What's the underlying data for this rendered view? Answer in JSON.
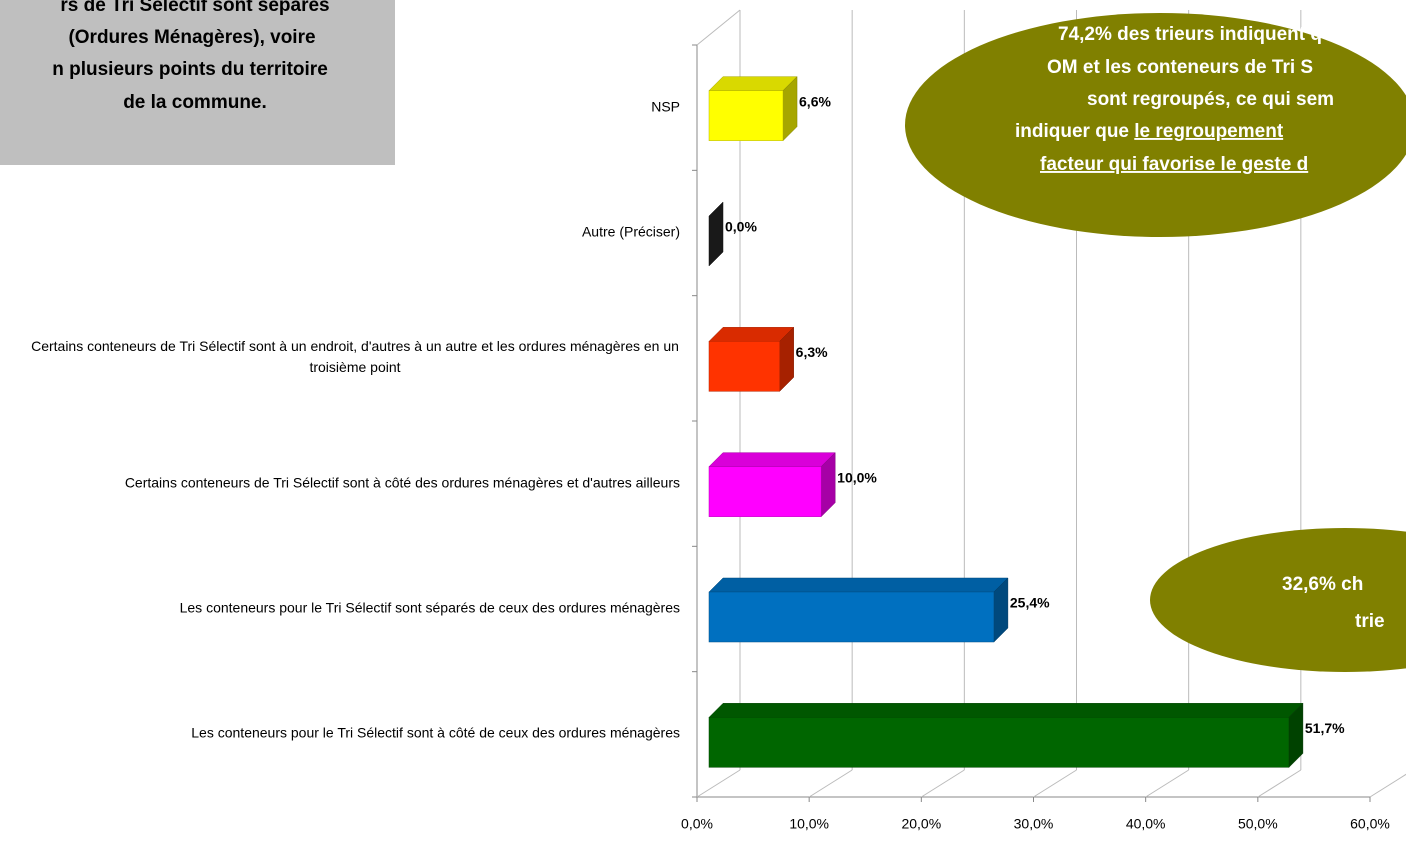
{
  "chart_data": {
    "type": "bar3d_horizontal",
    "categories": [
      "NSP",
      "Autre (Préciser)",
      "Certains conteneurs de Tri Sélectif sont à un endroit, d'autres à un autre et les ordures ménagères en un troisième point",
      "Certains conteneurs de Tri Sélectif sont à côté des ordures ménagères et d'autres ailleurs",
      "Les conteneurs pour le Tri Sélectif sont séparés de ceux des ordures ménagères",
      "Les conteneurs pour le Tri Sélectif sont à côté de ceux des ordures ménagères"
    ],
    "values": [
      6.6,
      0.0,
      6.3,
      10.0,
      25.4,
      51.7
    ],
    "value_labels": [
      "6,6%",
      "0,0%",
      "6,3%",
      "10,0%",
      "25,4%",
      "51,7%"
    ],
    "colors": [
      "#ffff00",
      "#262626",
      "#ff3300",
      "#ff00ff",
      "#0070c0",
      "#006600"
    ],
    "xlim": [
      0,
      60
    ],
    "xticks": [
      {
        "value": 0,
        "label": "0,0%"
      },
      {
        "value": 10,
        "label": "10,0%"
      },
      {
        "value": 20,
        "label": "20,0%"
      },
      {
        "value": 30,
        "label": "30,0%"
      },
      {
        "value": 40,
        "label": "40,0%"
      },
      {
        "value": 50,
        "label": "50,0%"
      },
      {
        "value": 60,
        "label": "60,0%"
      }
    ],
    "grid": true,
    "annotations": [
      {
        "lines": [
          "rs de Tri Sélectif sont séparés",
          "(Ordures Ménagères), voire",
          "n plusieurs points du territoire",
          "de la commune."
        ]
      },
      {
        "lines": [
          "74,2% des trieurs indiquent q",
          "OM et les conteneurs de Tri S",
          "sont regroupés, ce qui sem",
          "indiquer que ",
          "le regroupement",
          "facteur qui favorise le geste d"
        ]
      },
      {
        "lines": [
          "32,6% ch",
          "trie"
        ]
      }
    ]
  }
}
